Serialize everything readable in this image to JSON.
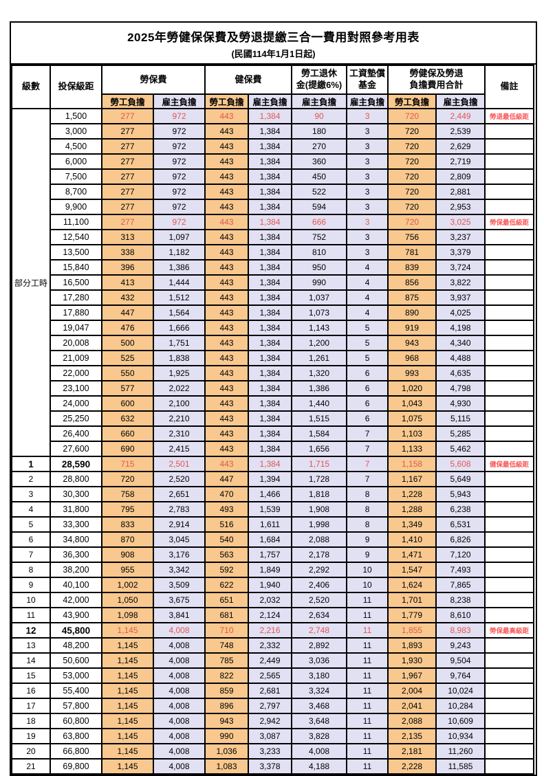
{
  "title": "2025年勞健保保費及勞退提繳三合一費用對照參考用表",
  "subtitle": "(民國114年1月1日起)",
  "colors": {
    "employee_column_bg": "#f8c88e",
    "employer_column_bg": "#e2e0f3",
    "highlight_value_text": "#e2574e",
    "remark_text": "#fa5a5a",
    "grid_border": "#000000"
  },
  "header": {
    "level": "級數",
    "bracket": "投保級距",
    "labor_fee": "勞保費",
    "health_fee": "健保費",
    "pension_line1": "勞工退休",
    "pension_line2": "金(提繳6%)",
    "wage_fund_line1": "工資墊償",
    "wage_fund_line2": "基金",
    "total_line1": "勞健保及勞退",
    "total_line2": "負擔費用合計",
    "remark": "備註",
    "employee": "勞工負擔",
    "employer": "雇主負擔"
  },
  "part_time_label": "部分工時",
  "part_time_rows": [
    {
      "bracket": "1,500",
      "values": [
        "277",
        "972",
        "443",
        "1,384",
        "90",
        "3",
        "720",
        "2,449"
      ],
      "remark": "勞退最低級距",
      "red": true,
      "bold": false
    },
    {
      "bracket": "3,000",
      "values": [
        "277",
        "972",
        "443",
        "1,384",
        "180",
        "3",
        "720",
        "2,539"
      ],
      "remark": "",
      "red": false,
      "bold": false
    },
    {
      "bracket": "4,500",
      "values": [
        "277",
        "972",
        "443",
        "1,384",
        "270",
        "3",
        "720",
        "2,629"
      ],
      "remark": "",
      "red": false,
      "bold": false
    },
    {
      "bracket": "6,000",
      "values": [
        "277",
        "972",
        "443",
        "1,384",
        "360",
        "3",
        "720",
        "2,719"
      ],
      "remark": "",
      "red": false,
      "bold": false
    },
    {
      "bracket": "7,500",
      "values": [
        "277",
        "972",
        "443",
        "1,384",
        "450",
        "3",
        "720",
        "2,809"
      ],
      "remark": "",
      "red": false,
      "bold": false
    },
    {
      "bracket": "8,700",
      "values": [
        "277",
        "972",
        "443",
        "1,384",
        "522",
        "3",
        "720",
        "2,881"
      ],
      "remark": "",
      "red": false,
      "bold": false
    },
    {
      "bracket": "9,900",
      "values": [
        "277",
        "972",
        "443",
        "1,384",
        "594",
        "3",
        "720",
        "2,953"
      ],
      "remark": "",
      "red": false,
      "bold": false
    },
    {
      "bracket": "11,100",
      "values": [
        "277",
        "972",
        "443",
        "1,384",
        "666",
        "3",
        "720",
        "3,025"
      ],
      "remark": "勞保最低級距",
      "red": true,
      "bold": false
    },
    {
      "bracket": "12,540",
      "values": [
        "313",
        "1,097",
        "443",
        "1,384",
        "752",
        "3",
        "756",
        "3,237"
      ],
      "remark": "",
      "red": false,
      "bold": false
    },
    {
      "bracket": "13,500",
      "values": [
        "338",
        "1,182",
        "443",
        "1,384",
        "810",
        "3",
        "781",
        "3,379"
      ],
      "remark": "",
      "red": false,
      "bold": false
    },
    {
      "bracket": "15,840",
      "values": [
        "396",
        "1,386",
        "443",
        "1,384",
        "950",
        "4",
        "839",
        "3,724"
      ],
      "remark": "",
      "red": false,
      "bold": false
    },
    {
      "bracket": "16,500",
      "values": [
        "413",
        "1,444",
        "443",
        "1,384",
        "990",
        "4",
        "856",
        "3,822"
      ],
      "remark": "",
      "red": false,
      "bold": false
    },
    {
      "bracket": "17,280",
      "values": [
        "432",
        "1,512",
        "443",
        "1,384",
        "1,037",
        "4",
        "875",
        "3,937"
      ],
      "remark": "",
      "red": false,
      "bold": false
    },
    {
      "bracket": "17,880",
      "values": [
        "447",
        "1,564",
        "443",
        "1,384",
        "1,073",
        "4",
        "890",
        "4,025"
      ],
      "remark": "",
      "red": false,
      "bold": false
    },
    {
      "bracket": "19,047",
      "values": [
        "476",
        "1,666",
        "443",
        "1,384",
        "1,143",
        "5",
        "919",
        "4,198"
      ],
      "remark": "",
      "red": false,
      "bold": false
    },
    {
      "bracket": "20,008",
      "values": [
        "500",
        "1,751",
        "443",
        "1,384",
        "1,200",
        "5",
        "943",
        "4,340"
      ],
      "remark": "",
      "red": false,
      "bold": false
    },
    {
      "bracket": "21,009",
      "values": [
        "525",
        "1,838",
        "443",
        "1,384",
        "1,261",
        "5",
        "968",
        "4,488"
      ],
      "remark": "",
      "red": false,
      "bold": false
    },
    {
      "bracket": "22,000",
      "values": [
        "550",
        "1,925",
        "443",
        "1,384",
        "1,320",
        "6",
        "993",
        "4,635"
      ],
      "remark": "",
      "red": false,
      "bold": false
    },
    {
      "bracket": "23,100",
      "values": [
        "577",
        "2,022",
        "443",
        "1,384",
        "1,386",
        "6",
        "1,020",
        "4,798"
      ],
      "remark": "",
      "red": false,
      "bold": false
    },
    {
      "bracket": "24,000",
      "values": [
        "600",
        "2,100",
        "443",
        "1,384",
        "1,440",
        "6",
        "1,043",
        "4,930"
      ],
      "remark": "",
      "red": false,
      "bold": false
    },
    {
      "bracket": "25,250",
      "values": [
        "632",
        "2,210",
        "443",
        "1,384",
        "1,515",
        "6",
        "1,075",
        "5,115"
      ],
      "remark": "",
      "red": false,
      "bold": false
    },
    {
      "bracket": "26,400",
      "values": [
        "660",
        "2,310",
        "443",
        "1,384",
        "1,584",
        "7",
        "1,103",
        "5,285"
      ],
      "remark": "",
      "red": false,
      "bold": false
    },
    {
      "bracket": "27,600",
      "values": [
        "690",
        "2,415",
        "443",
        "1,384",
        "1,656",
        "7",
        "1,133",
        "5,462"
      ],
      "remark": "",
      "red": false,
      "bold": false
    }
  ],
  "level_rows": [
    {
      "level": "1",
      "bracket": "28,590",
      "values": [
        "715",
        "2,501",
        "443",
        "1,384",
        "1,715",
        "7",
        "1,158",
        "5,608"
      ],
      "remark": "健保最低級距",
      "red": true,
      "bold": true
    },
    {
      "level": "2",
      "bracket": "28,800",
      "values": [
        "720",
        "2,520",
        "447",
        "1,394",
        "1,728",
        "7",
        "1,167",
        "5,649"
      ],
      "remark": "",
      "red": false,
      "bold": false
    },
    {
      "level": "3",
      "bracket": "30,300",
      "values": [
        "758",
        "2,651",
        "470",
        "1,466",
        "1,818",
        "8",
        "1,228",
        "5,943"
      ],
      "remark": "",
      "red": false,
      "bold": false
    },
    {
      "level": "4",
      "bracket": "31,800",
      "values": [
        "795",
        "2,783",
        "493",
        "1,539",
        "1,908",
        "8",
        "1,288",
        "6,238"
      ],
      "remark": "",
      "red": false,
      "bold": false
    },
    {
      "level": "5",
      "bracket": "33,300",
      "values": [
        "833",
        "2,914",
        "516",
        "1,611",
        "1,998",
        "8",
        "1,349",
        "6,531"
      ],
      "remark": "",
      "red": false,
      "bold": false
    },
    {
      "level": "6",
      "bracket": "34,800",
      "values": [
        "870",
        "3,045",
        "540",
        "1,684",
        "2,088",
        "9",
        "1,410",
        "6,826"
      ],
      "remark": "",
      "red": false,
      "bold": false
    },
    {
      "level": "7",
      "bracket": "36,300",
      "values": [
        "908",
        "3,176",
        "563",
        "1,757",
        "2,178",
        "9",
        "1,471",
        "7,120"
      ],
      "remark": "",
      "red": false,
      "bold": false
    },
    {
      "level": "8",
      "bracket": "38,200",
      "values": [
        "955",
        "3,342",
        "592",
        "1,849",
        "2,292",
        "10",
        "1,547",
        "7,493"
      ],
      "remark": "",
      "red": false,
      "bold": false
    },
    {
      "level": "9",
      "bracket": "40,100",
      "values": [
        "1,002",
        "3,509",
        "622",
        "1,940",
        "2,406",
        "10",
        "1,624",
        "7,865"
      ],
      "remark": "",
      "red": false,
      "bold": false
    },
    {
      "level": "10",
      "bracket": "42,000",
      "values": [
        "1,050",
        "3,675",
        "651",
        "2,032",
        "2,520",
        "11",
        "1,701",
        "8,238"
      ],
      "remark": "",
      "red": false,
      "bold": false
    },
    {
      "level": "11",
      "bracket": "43,900",
      "values": [
        "1,098",
        "3,841",
        "681",
        "2,124",
        "2,634",
        "11",
        "1,779",
        "8,610"
      ],
      "remark": "",
      "red": false,
      "bold": false
    },
    {
      "level": "12",
      "bracket": "45,800",
      "values": [
        "1,145",
        "4,008",
        "710",
        "2,216",
        "2,748",
        "11",
        "1,855",
        "8,983"
      ],
      "remark": "勞保最高級距",
      "red": true,
      "bold": true
    },
    {
      "level": "13",
      "bracket": "48,200",
      "values": [
        "1,145",
        "4,008",
        "748",
        "2,332",
        "2,892",
        "11",
        "1,893",
        "9,243"
      ],
      "remark": "",
      "red": false,
      "bold": false
    },
    {
      "level": "14",
      "bracket": "50,600",
      "values": [
        "1,145",
        "4,008",
        "785",
        "2,449",
        "3,036",
        "11",
        "1,930",
        "9,504"
      ],
      "remark": "",
      "red": false,
      "bold": false
    },
    {
      "level": "15",
      "bracket": "53,000",
      "values": [
        "1,145",
        "4,008",
        "822",
        "2,565",
        "3,180",
        "11",
        "1,967",
        "9,764"
      ],
      "remark": "",
      "red": false,
      "bold": false
    },
    {
      "level": "16",
      "bracket": "55,400",
      "values": [
        "1,145",
        "4,008",
        "859",
        "2,681",
        "3,324",
        "11",
        "2,004",
        "10,024"
      ],
      "remark": "",
      "red": false,
      "bold": false
    },
    {
      "level": "17",
      "bracket": "57,800",
      "values": [
        "1,145",
        "4,008",
        "896",
        "2,797",
        "3,468",
        "11",
        "2,041",
        "10,284"
      ],
      "remark": "",
      "red": false,
      "bold": false
    },
    {
      "level": "18",
      "bracket": "60,800",
      "values": [
        "1,145",
        "4,008",
        "943",
        "2,942",
        "3,648",
        "11",
        "2,088",
        "10,609"
      ],
      "remark": "",
      "red": false,
      "bold": false
    },
    {
      "level": "19",
      "bracket": "63,800",
      "values": [
        "1,145",
        "4,008",
        "990",
        "3,087",
        "3,828",
        "11",
        "2,135",
        "10,934"
      ],
      "remark": "",
      "red": false,
      "bold": false
    },
    {
      "level": "20",
      "bracket": "66,800",
      "values": [
        "1,145",
        "4,008",
        "1,036",
        "3,233",
        "4,008",
        "11",
        "2,181",
        "11,260"
      ],
      "remark": "",
      "red": false,
      "bold": false
    },
    {
      "level": "21",
      "bracket": "69,800",
      "values": [
        "1,145",
        "4,008",
        "1,083",
        "3,378",
        "4,188",
        "11",
        "2,228",
        "11,585"
      ],
      "remark": "",
      "red": false,
      "bold": false
    }
  ]
}
